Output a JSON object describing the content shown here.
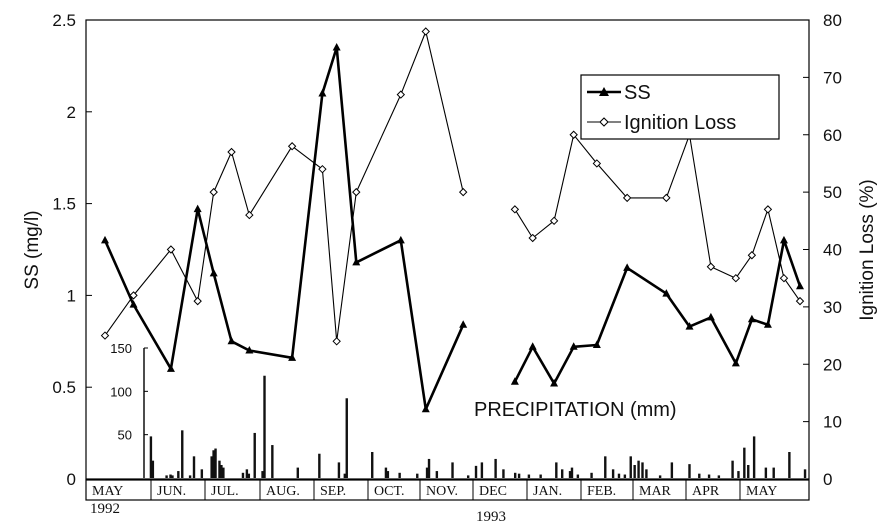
{
  "chart_data": [
    {
      "type": "line",
      "x_kind": "sample_index",
      "xlim": [
        0,
        40
      ],
      "ylabel": "SS (mg/l)",
      "ylim": [
        0,
        2.5
      ],
      "yticks": [
        "0",
        "0.5",
        "1",
        "1.5",
        "2",
        "2.5"
      ],
      "y2label": "Ignition Loss (%)",
      "y2lim": [
        0,
        80
      ],
      "y2ticks": [
        "0",
        "10",
        "20",
        "30",
        "40",
        "50",
        "60",
        "70",
        "80"
      ],
      "legend_position": "top-right",
      "grid": false,
      "series": [
        {
          "name": "SS",
          "axis": "left",
          "marker": "filled-triangle",
          "segments": [
            {
              "x": [
                1,
                2.6,
                4.7,
                6.2,
                7.1,
                8.1,
                9.1,
                11.5,
                13.2,
                14,
                15.1,
                17.6,
                19,
                21.1
              ],
              "y": [
                1.3,
                0.95,
                0.6,
                1.47,
                1.12,
                0.75,
                0.7,
                0.66,
                2.1,
                2.35,
                1.18,
                1.3,
                0.38,
                0.84
              ]
            },
            {
              "x": [
                24,
                25,
                26.2,
                27.3,
                28.6,
                30.3,
                32.5,
                33.8,
                35,
                36.4,
                37.3,
                38.2,
                39.1,
                40
              ],
              "y": [
                0.53,
                0.72,
                0.52,
                0.72,
                0.73,
                1.15,
                1.01,
                0.83,
                0.88,
                0.63,
                0.87,
                0.84,
                1.3,
                1.05
              ]
            }
          ]
        },
        {
          "name": "Ignition Loss",
          "axis": "right",
          "marker": "open-diamond",
          "segments": [
            {
              "x": [
                1,
                2.6,
                4.7,
                6.2,
                7.1,
                8.1,
                9.1,
                11.5,
                13.2,
                14,
                15.1,
                17.6,
                19,
                21.1
              ],
              "y": [
                25,
                32,
                40,
                31,
                50,
                57,
                46,
                58,
                54,
                24,
                50,
                67,
                78,
                50
              ]
            },
            {
              "x": [
                24,
                25,
                26.2,
                27.3,
                28.6,
                30.3,
                32.5,
                33.8,
                35,
                36.4,
                37.3,
                38.2,
                39.1,
                40
              ],
              "y": [
                47,
                42,
                45,
                60,
                55,
                49,
                49,
                60,
                37,
                35,
                39,
                47,
                35,
                31
              ]
            }
          ]
        }
      ]
    },
    {
      "type": "bar",
      "title": "PRECIPITATION (mm)",
      "ylim": [
        0,
        150
      ],
      "yticks": [
        "50",
        "100",
        "150"
      ],
      "values": [
        0,
        0,
        0,
        0,
        0,
        0,
        0,
        0,
        0,
        0,
        0,
        0,
        0,
        0,
        0,
        0,
        0,
        0,
        0,
        0,
        0,
        0,
        0,
        0,
        0,
        0,
        0,
        0,
        0,
        0,
        0,
        0,
        0,
        0,
        0,
        0,
        0,
        0,
        0,
        0,
        0,
        0,
        0,
        0,
        0,
        0,
        0,
        0,
        0,
        0,
        0,
        0,
        0,
        0,
        0,
        0,
        0,
        0,
        0,
        0,
        0,
        0,
        0,
        0,
        0,
        0,
        0,
        0,
        0,
        0,
        0,
        0,
        0,
        0,
        0,
        0,
        0,
        0,
        0,
        0,
        0,
        0,
        0,
        0,
        0,
        0,
        0,
        0,
        0,
        0,
        0,
        0,
        0,
        0,
        0,
        0,
        0,
        0,
        0,
        0,
        0,
        0,
        0,
        0,
        0,
        0,
        0,
        0,
        0,
        0,
        0,
        0,
        0,
        0,
        0,
        0,
        0,
        0,
        0,
        0,
        0,
        0,
        0,
        0,
        0,
        0,
        0,
        0,
        0,
        0,
        0,
        0,
        0,
        0,
        0,
        0,
        0,
        0,
        0,
        0,
        0,
        0,
        0,
        0,
        0,
        0,
        0,
        0,
        0,
        0,
        0,
        0,
        0,
        0,
        0,
        0,
        0,
        0,
        0,
        0,
        0,
        0,
        0,
        0,
        0,
        0,
        0,
        0,
        0,
        0,
        0,
        0,
        0,
        0,
        0,
        0,
        0,
        0,
        0,
        0,
        0,
        0,
        0,
        0,
        0,
        0,
        0,
        0,
        0,
        0,
        0,
        0,
        0,
        0,
        0,
        0,
        0,
        0,
        0,
        0,
        0,
        0,
        0,
        0,
        0,
        0,
        0,
        0,
        0,
        0,
        0,
        0,
        0,
        0,
        0,
        0,
        0,
        0,
        0,
        0,
        0,
        0,
        0,
        0,
        0,
        0,
        0,
        0,
        0,
        0,
        0,
        0,
        0,
        0,
        0,
        0,
        0,
        0,
        0,
        0,
        0,
        0,
        0,
        0,
        0,
        0,
        0,
        0,
        0,
        0,
        0,
        0,
        0,
        0,
        0,
        0,
        0,
        0,
        0,
        0,
        0,
        0,
        0,
        0,
        0,
        0,
        0,
        0,
        0,
        0,
        0,
        0,
        0,
        0,
        0,
        0,
        0,
        0,
        0,
        0,
        0,
        0,
        0,
        0,
        0,
        0,
        0,
        0,
        0,
        0,
        0,
        0,
        0,
        0,
        0,
        0,
        0,
        0,
        0,
        0,
        0,
        0,
        0,
        0,
        0,
        0,
        0,
        0,
        0,
        0,
        0,
        0,
        0,
        0,
        0,
        0,
        0,
        0,
        0,
        0,
        0,
        0,
        0,
        0,
        0,
        0,
        0,
        0,
        0,
        0,
        0,
        0,
        0,
        0,
        0,
        0,
        0,
        0,
        0,
        0,
        0,
        0,
        0,
        0,
        0,
        0,
        0,
        0,
        0,
        0,
        0,
        0,
        0,
        0,
        0,
        0,
        0,
        0,
        0,
        0,
        0,
        0,
        0,
        0,
        0,
        0,
        0,
        0,
        0,
        0,
        0,
        0,
        0,
        0,
        0,
        0,
        0,
        0,
        0,
        0,
        0,
        0,
        0,
        0,
        0,
        0,
        0,
        0,
        0,
        0,
        0,
        0,
        0,
        0,
        0,
        0,
        0,
        0,
        0,
        0,
        0,
        0,
        0,
        0,
        0,
        0,
        0,
        0,
        0,
        0,
        0,
        0,
        0,
        0,
        0,
        0,
        0,
        0,
        0,
        0,
        0,
        0,
        0,
        0,
        0,
        0,
        0,
        0,
        0,
        0,
        0,
        0,
        0,
        0,
        0,
        0,
        0,
        0,
        0,
        0,
        0,
        0,
        0,
        0,
        0,
        0,
        0,
        0,
        0,
        0,
        0,
        0,
        0,
        0,
        0,
        0,
        0,
        0,
        0,
        0,
        0,
        0,
        0,
        0,
        0,
        0,
        0,
        0,
        0,
        0,
        0,
        0,
        0,
        0,
        0,
        0,
        0,
        0,
        0,
        0,
        0,
        0,
        0,
        0,
        0,
        0,
        0,
        0,
        0,
        0,
        0,
        0
      ],
      "events": [
        {
          "day": 30,
          "mm": 48
        },
        {
          "day": 31,
          "mm": 20
        },
        {
          "day": 38,
          "mm": 3
        },
        {
          "day": 40,
          "mm": 4
        },
        {
          "day": 41,
          "mm": 3
        },
        {
          "day": 44,
          "mm": 8
        },
        {
          "day": 46,
          "mm": 55
        },
        {
          "day": 50,
          "mm": 3
        },
        {
          "day": 52,
          "mm": 25
        },
        {
          "day": 56,
          "mm": 10
        },
        {
          "day": 61,
          "mm": 25
        },
        {
          "day": 62,
          "mm": 32
        },
        {
          "day": 63,
          "mm": 34
        },
        {
          "day": 65,
          "mm": 20
        },
        {
          "day": 66,
          "mm": 15
        },
        {
          "day": 67,
          "mm": 12
        },
        {
          "day": 77,
          "mm": 6
        },
        {
          "day": 79,
          "mm": 10
        },
        {
          "day": 80,
          "mm": 5
        },
        {
          "day": 83,
          "mm": 52
        },
        {
          "day": 87,
          "mm": 8
        },
        {
          "day": 88,
          "mm": 118
        },
        {
          "day": 92,
          "mm": 38
        },
        {
          "day": 105,
          "mm": 12
        },
        {
          "day": 116,
          "mm": 28
        },
        {
          "day": 126,
          "mm": 18
        },
        {
          "day": 129,
          "mm": 5
        },
        {
          "day": 130,
          "mm": 92
        },
        {
          "day": 143,
          "mm": 30
        },
        {
          "day": 150,
          "mm": 12
        },
        {
          "day": 151,
          "mm": 8
        },
        {
          "day": 157,
          "mm": 6
        },
        {
          "day": 166,
          "mm": 5
        },
        {
          "day": 171,
          "mm": 12
        },
        {
          "day": 172,
          "mm": 22
        },
        {
          "day": 176,
          "mm": 8
        },
        {
          "day": 184,
          "mm": 18
        },
        {
          "day": 192,
          "mm": 3
        },
        {
          "day": 196,
          "mm": 14
        },
        {
          "day": 199,
          "mm": 18
        },
        {
          "day": 206,
          "mm": 22
        },
        {
          "day": 210,
          "mm": 10
        },
        {
          "day": 216,
          "mm": 6
        },
        {
          "day": 218,
          "mm": 5
        },
        {
          "day": 223,
          "mm": 4
        },
        {
          "day": 229,
          "mm": 4
        },
        {
          "day": 237,
          "mm": 18
        },
        {
          "day": 240,
          "mm": 10
        },
        {
          "day": 244,
          "mm": 8
        },
        {
          "day": 245,
          "mm": 12
        },
        {
          "day": 248,
          "mm": 4
        },
        {
          "day": 255,
          "mm": 6
        },
        {
          "day": 262,
          "mm": 25
        },
        {
          "day": 266,
          "mm": 10
        },
        {
          "day": 269,
          "mm": 5
        },
        {
          "day": 272,
          "mm": 4
        },
        {
          "day": 275,
          "mm": 25
        },
        {
          "day": 277,
          "mm": 15
        },
        {
          "day": 279,
          "mm": 20
        },
        {
          "day": 281,
          "mm": 18
        },
        {
          "day": 283,
          "mm": 10
        },
        {
          "day": 290,
          "mm": 3
        },
        {
          "day": 296,
          "mm": 18
        },
        {
          "day": 305,
          "mm": 16
        },
        {
          "day": 310,
          "mm": 5
        },
        {
          "day": 315,
          "mm": 4
        },
        {
          "day": 320,
          "mm": 3
        },
        {
          "day": 327,
          "mm": 20
        },
        {
          "day": 330,
          "mm": 8
        },
        {
          "day": 333,
          "mm": 35
        },
        {
          "day": 335,
          "mm": 15
        },
        {
          "day": 338,
          "mm": 48
        },
        {
          "day": 344,
          "mm": 12
        },
        {
          "day": 348,
          "mm": 12
        },
        {
          "day": 356,
          "mm": 30
        },
        {
          "day": 364,
          "mm": 10
        }
      ]
    }
  ],
  "months": [
    "MAY",
    "JUN.",
    "JUL.",
    "AUG.",
    "SEP.",
    "OCT.",
    "NOV.",
    "DEC",
    "JAN.",
    "FEB.",
    "MAR",
    "APR",
    "MAY"
  ],
  "years": [
    "1992",
    "1993"
  ],
  "annotation": "PRECIPITATION (mm)"
}
